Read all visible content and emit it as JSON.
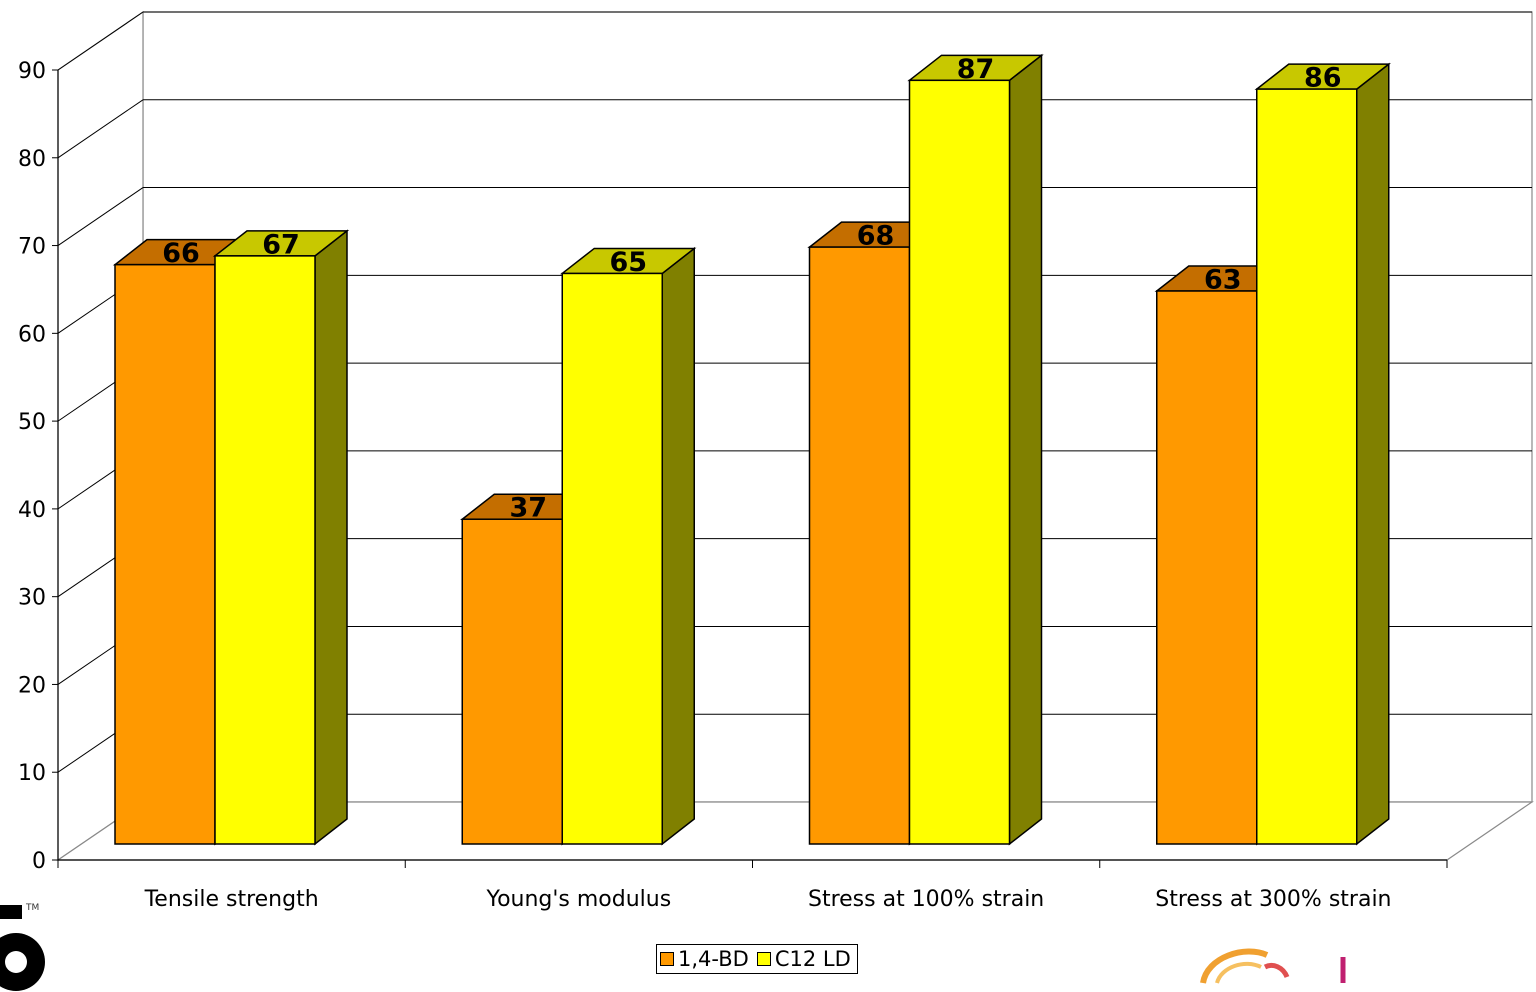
{
  "chart_data": {
    "type": "bar",
    "title": "",
    "xlabel": "",
    "ylabel": "",
    "ylim": [
      0,
      90
    ],
    "yticks": [
      0,
      10,
      20,
      30,
      40,
      50,
      60,
      70,
      80,
      90
    ],
    "grid": true,
    "three_d": true,
    "legend_position": "bottom",
    "categories": [
      "Tensile strength",
      "Young's modulus",
      "Stress at 100% strain",
      "Stress at 300% strain"
    ],
    "series": [
      {
        "name": "1,4-BD",
        "values": [
          66,
          37,
          68,
          63
        ],
        "color": "#ff9900",
        "top_color": "#c46e00",
        "side_color": "#a05500"
      },
      {
        "name": "C12 LD",
        "values": [
          67,
          65,
          87,
          86
        ],
        "color": "#ffff00",
        "top_color": "#c8c800",
        "side_color": "#808000"
      }
    ]
  },
  "legend": {
    "items": [
      {
        "label": "1,4-BD",
        "color": "#ff9900"
      },
      {
        "label": "C12 LD",
        "color": "#ffff00"
      }
    ]
  },
  "trademark": {
    "text": "TM"
  }
}
